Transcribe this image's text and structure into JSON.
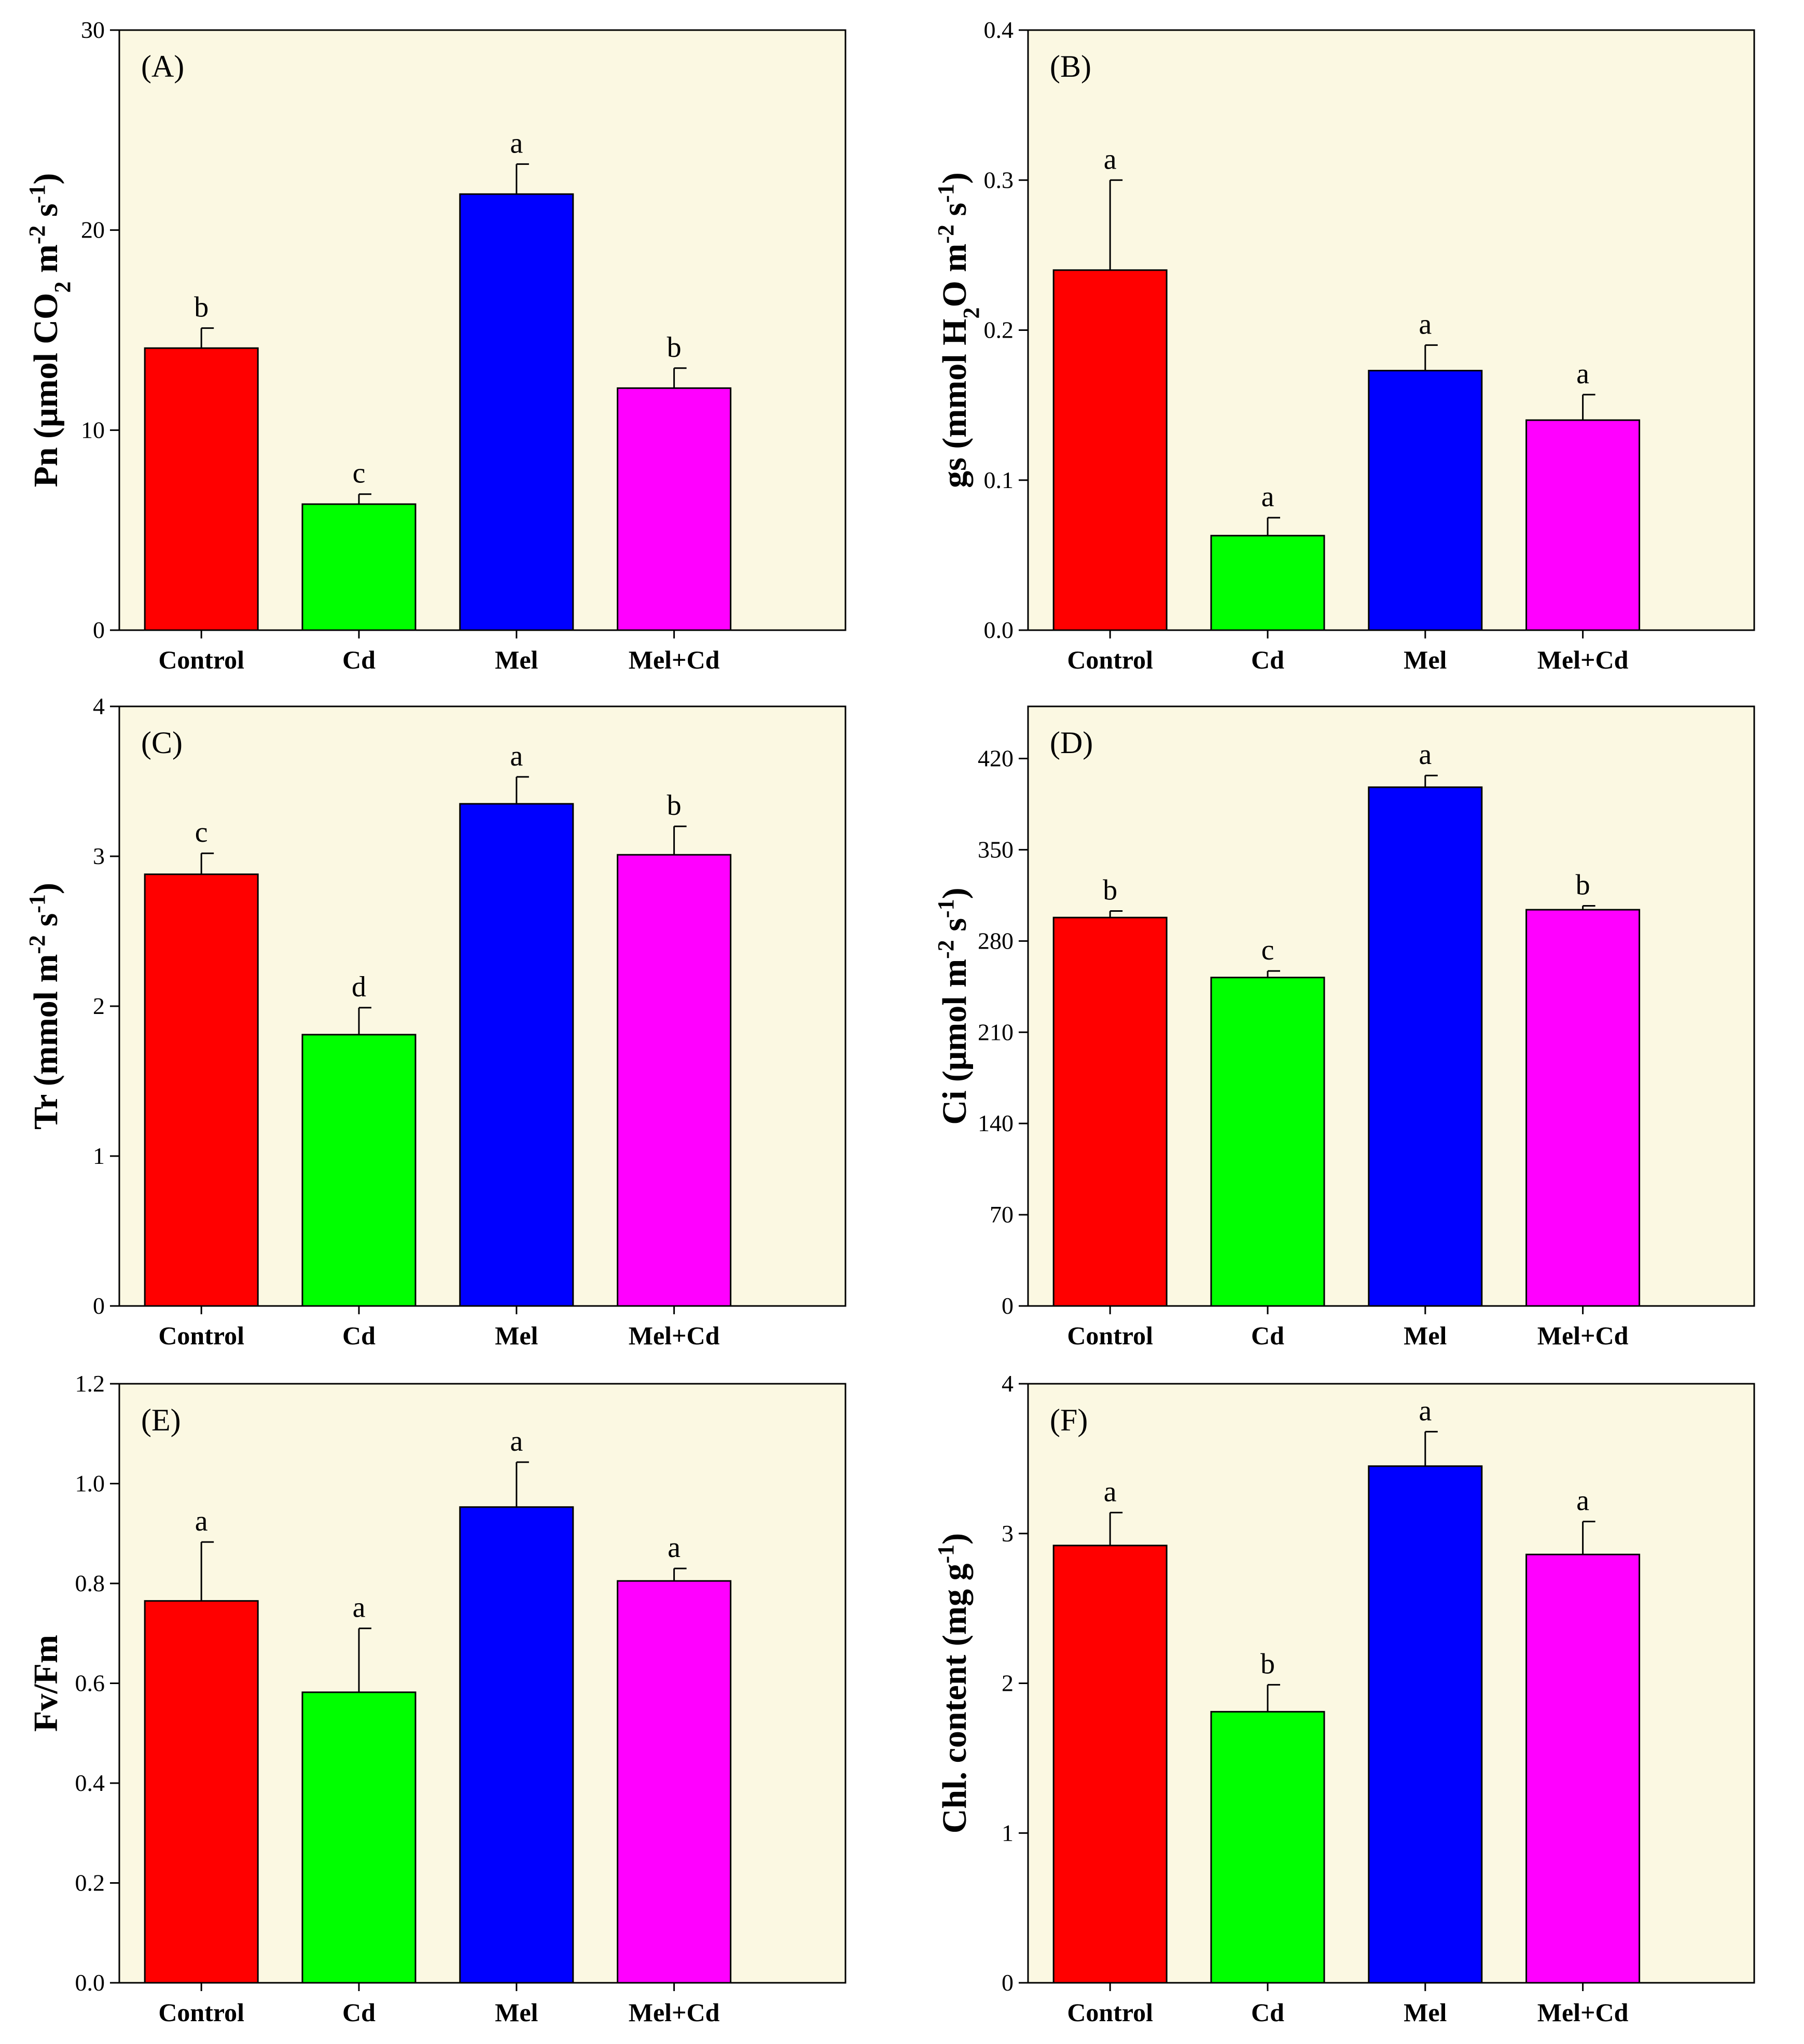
{
  "figure": {
    "categories": [
      "Control",
      "Cd",
      "Mel",
      "Mel+Cd"
    ],
    "colors": {
      "Control": "#ff0000",
      "Cd": "#00ff00",
      "Mel": "#0000ff",
      "Mel+Cd": "#ff00ff",
      "plot_background": "#fbf8e2"
    }
  },
  "chart_data": [
    {
      "type": "bar",
      "panel_label": "(A)",
      "ylabel_parts": [
        "Pn (μmol CO",
        "2",
        " m",
        "-2",
        " s",
        "-1",
        ")"
      ],
      "categories": [
        "Control",
        "Cd",
        "Mel",
        "Mel+Cd"
      ],
      "values": [
        14.1,
        6.3,
        21.8,
        12.1
      ],
      "errors": [
        1.0,
        0.5,
        1.5,
        1.0
      ],
      "significance": [
        "b",
        "c",
        "a",
        "b"
      ],
      "ylim": [
        0,
        30
      ],
      "yticks": [
        0,
        10,
        20,
        30
      ],
      "ytick_labels": [
        "0",
        "10",
        "20",
        "30"
      ]
    },
    {
      "type": "bar",
      "panel_label": "(B)",
      "ylabel_parts": [
        "gs (mmol H",
        "2",
        "O m",
        "-2",
        " s",
        "-1",
        ")"
      ],
      "categories": [
        "Control",
        "Cd",
        "Mel",
        "Mel+Cd"
      ],
      "values": [
        0.24,
        0.063,
        0.173,
        0.14
      ],
      "errors": [
        0.06,
        0.012,
        0.017,
        0.017
      ],
      "significance": [
        "a",
        "a",
        "a",
        "a"
      ],
      "ylim": [
        0,
        0.4
      ],
      "yticks": [
        0,
        0.1,
        0.2,
        0.3,
        0.4
      ],
      "ytick_labels": [
        "0.0",
        "0.1",
        "0.2",
        "0.3",
        "0.4"
      ]
    },
    {
      "type": "bar",
      "panel_label": "(C)",
      "ylabel_parts": [
        "Tr (mmol m",
        "-2",
        " s",
        "-1",
        ")"
      ],
      "categories": [
        "Control",
        "Cd",
        "Mel",
        "Mel+Cd"
      ],
      "values": [
        2.88,
        1.81,
        3.35,
        3.01
      ],
      "errors": [
        0.14,
        0.18,
        0.18,
        0.19
      ],
      "significance": [
        "c",
        "d",
        "a",
        "b"
      ],
      "ylim": [
        0,
        4
      ],
      "yticks": [
        0,
        1,
        2,
        3,
        4
      ],
      "ytick_labels": [
        "0",
        "1",
        "2",
        "3",
        "4"
      ]
    },
    {
      "type": "bar",
      "panel_label": "(D)",
      "ylabel_parts": [
        "Ci (μmol m",
        "-2",
        " s",
        "-1",
        ")"
      ],
      "categories": [
        "Control",
        "Cd",
        "Mel",
        "Mel+Cd"
      ],
      "values": [
        298,
        252,
        398,
        304
      ],
      "errors": [
        5,
        5,
        9,
        3
      ],
      "significance": [
        "b",
        "c",
        "a",
        "b"
      ],
      "ylim": [
        0,
        460
      ],
      "yticks": [
        0,
        70,
        140,
        210,
        280,
        350,
        420
      ],
      "ytick_labels": [
        "0",
        "70",
        "140",
        "210",
        "280",
        "350",
        "420"
      ]
    },
    {
      "type": "bar",
      "panel_label": "(E)",
      "ylabel_parts": [
        "Fv/Fm"
      ],
      "categories": [
        "Control",
        "Cd",
        "Mel",
        "Mel+Cd"
      ],
      "values": [
        0.765,
        0.582,
        0.953,
        0.805
      ],
      "errors": [
        0.118,
        0.128,
        0.09,
        0.025
      ],
      "significance": [
        "a",
        "a",
        "a",
        "a"
      ],
      "ylim": [
        0,
        1.2
      ],
      "yticks": [
        0,
        0.2,
        0.4,
        0.6,
        0.8,
        1.0,
        1.2
      ],
      "ytick_labels": [
        "0.0",
        "0.2",
        "0.4",
        "0.6",
        "0.8",
        "1.0",
        "1.2"
      ]
    },
    {
      "type": "bar",
      "panel_label": "(F)",
      "ylabel_parts": [
        "Chl. content (mg g",
        "-1",
        ")"
      ],
      "categories": [
        "Control",
        "Cd",
        "Mel",
        "Mel+Cd"
      ],
      "values": [
        2.92,
        1.81,
        3.45,
        2.86
      ],
      "errors": [
        0.22,
        0.18,
        0.23,
        0.22
      ],
      "significance": [
        "a",
        "b",
        "a",
        "a"
      ],
      "ylim": [
        0,
        4
      ],
      "yticks": [
        0,
        1,
        2,
        3,
        4
      ],
      "ytick_labels": [
        "0",
        "1",
        "2",
        "3",
        "4"
      ]
    }
  ]
}
